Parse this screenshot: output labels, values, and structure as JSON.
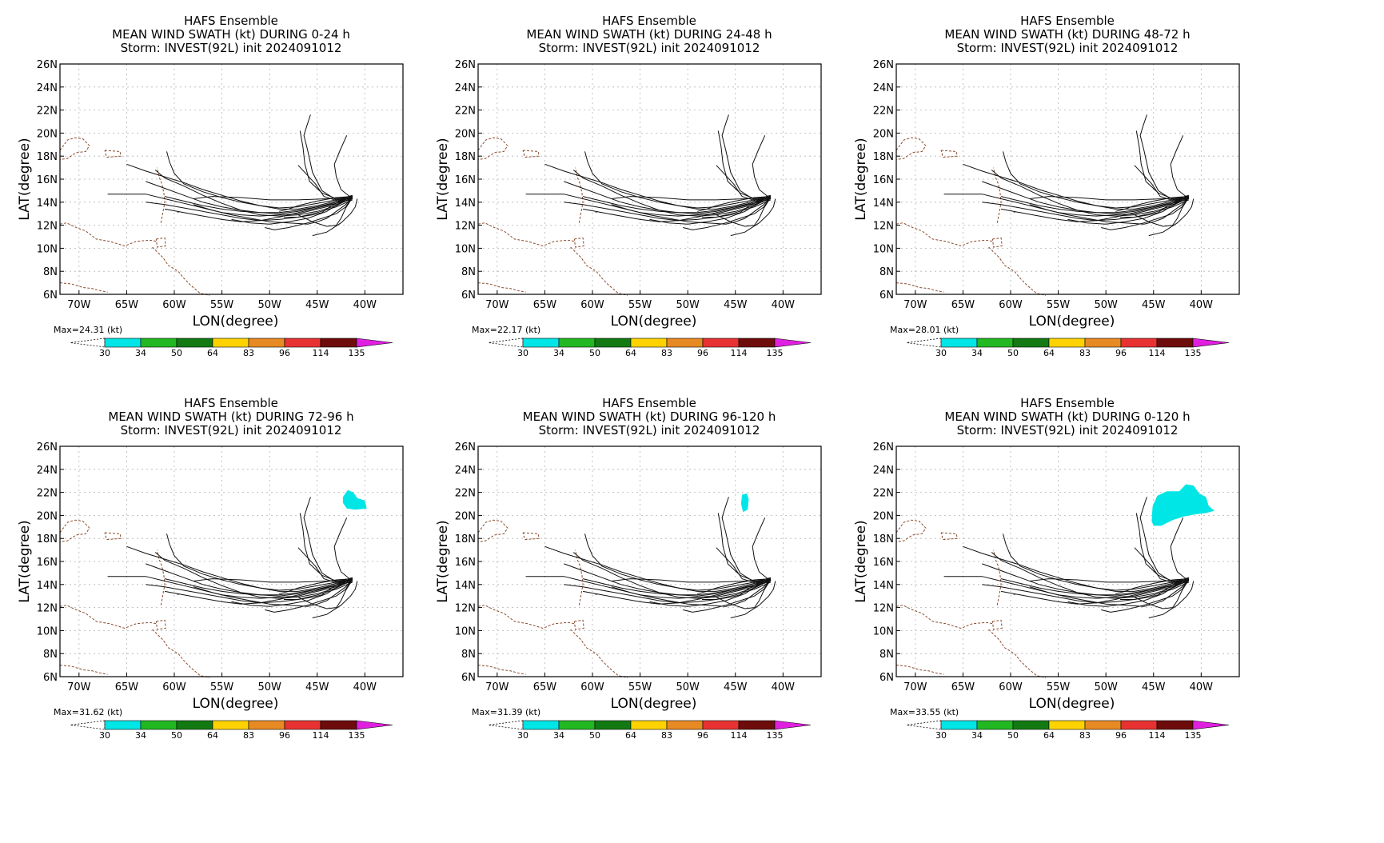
{
  "figure": {
    "colorbar": {
      "unit": "(kt)",
      "levels": [
        "30",
        "34",
        "50",
        "64",
        "83",
        "96",
        "114",
        "135"
      ],
      "colors": [
        "#00e5e5",
        "#22b822",
        "#137a13",
        "#ffd200",
        "#e88a24",
        "#e83232",
        "#6e0c0c",
        "#e020e0"
      ]
    },
    "axes": {
      "ylabel": "LAT(degree)",
      "xlabel": "LON(degree)",
      "yticks": [
        "6N",
        "8N",
        "10N",
        "12N",
        "14N",
        "16N",
        "18N",
        "20N",
        "22N",
        "24N",
        "26N"
      ],
      "xticks": [
        "70W",
        "65W",
        "60W",
        "55W",
        "50W",
        "45W",
        "40W"
      ]
    }
  },
  "chart_data": [
    {
      "type": "map",
      "title": "HAFS Ensemble",
      "subtitle": "MEAN WIND SWATH (kt) DURING  0-24 h",
      "storm": "Storm: INVEST(92L) init 2024091012",
      "max_label": "Max=24.31",
      "swath": "none"
    },
    {
      "type": "map",
      "title": "HAFS Ensemble",
      "subtitle": "MEAN WIND SWATH (kt) DURING 24-48 h",
      "storm": "Storm: INVEST(92L) init 2024091012",
      "max_label": "Max=22.17",
      "swath": "none"
    },
    {
      "type": "map",
      "title": "HAFS Ensemble",
      "subtitle": "MEAN WIND SWATH (kt) DURING 48-72 h",
      "storm": "Storm: INVEST(92L) init 2024091012",
      "max_label": "Max=28.01",
      "swath": "none"
    },
    {
      "type": "map",
      "title": "HAFS Ensemble",
      "subtitle": "MEAN WIND SWATH (kt) DURING 72-96 h",
      "storm": "Storm: INVEST(92L) init 2024091012",
      "max_label": "Max=31.62",
      "swath": "small-ne"
    },
    {
      "type": "map",
      "title": "HAFS Ensemble",
      "subtitle": "MEAN WIND SWATH (kt) DURING 96-120 h",
      "storm": "Storm: INVEST(92L) init 2024091012",
      "max_label": "Max=31.39",
      "swath": "tiny-n"
    },
    {
      "type": "map",
      "title": "HAFS Ensemble",
      "subtitle": "MEAN WIND SWATH (kt) DURING 0-120 h",
      "storm": "Storm: INVEST(92L) init 2024091012",
      "max_label": "Max=33.55",
      "swath": "large-ne"
    }
  ]
}
